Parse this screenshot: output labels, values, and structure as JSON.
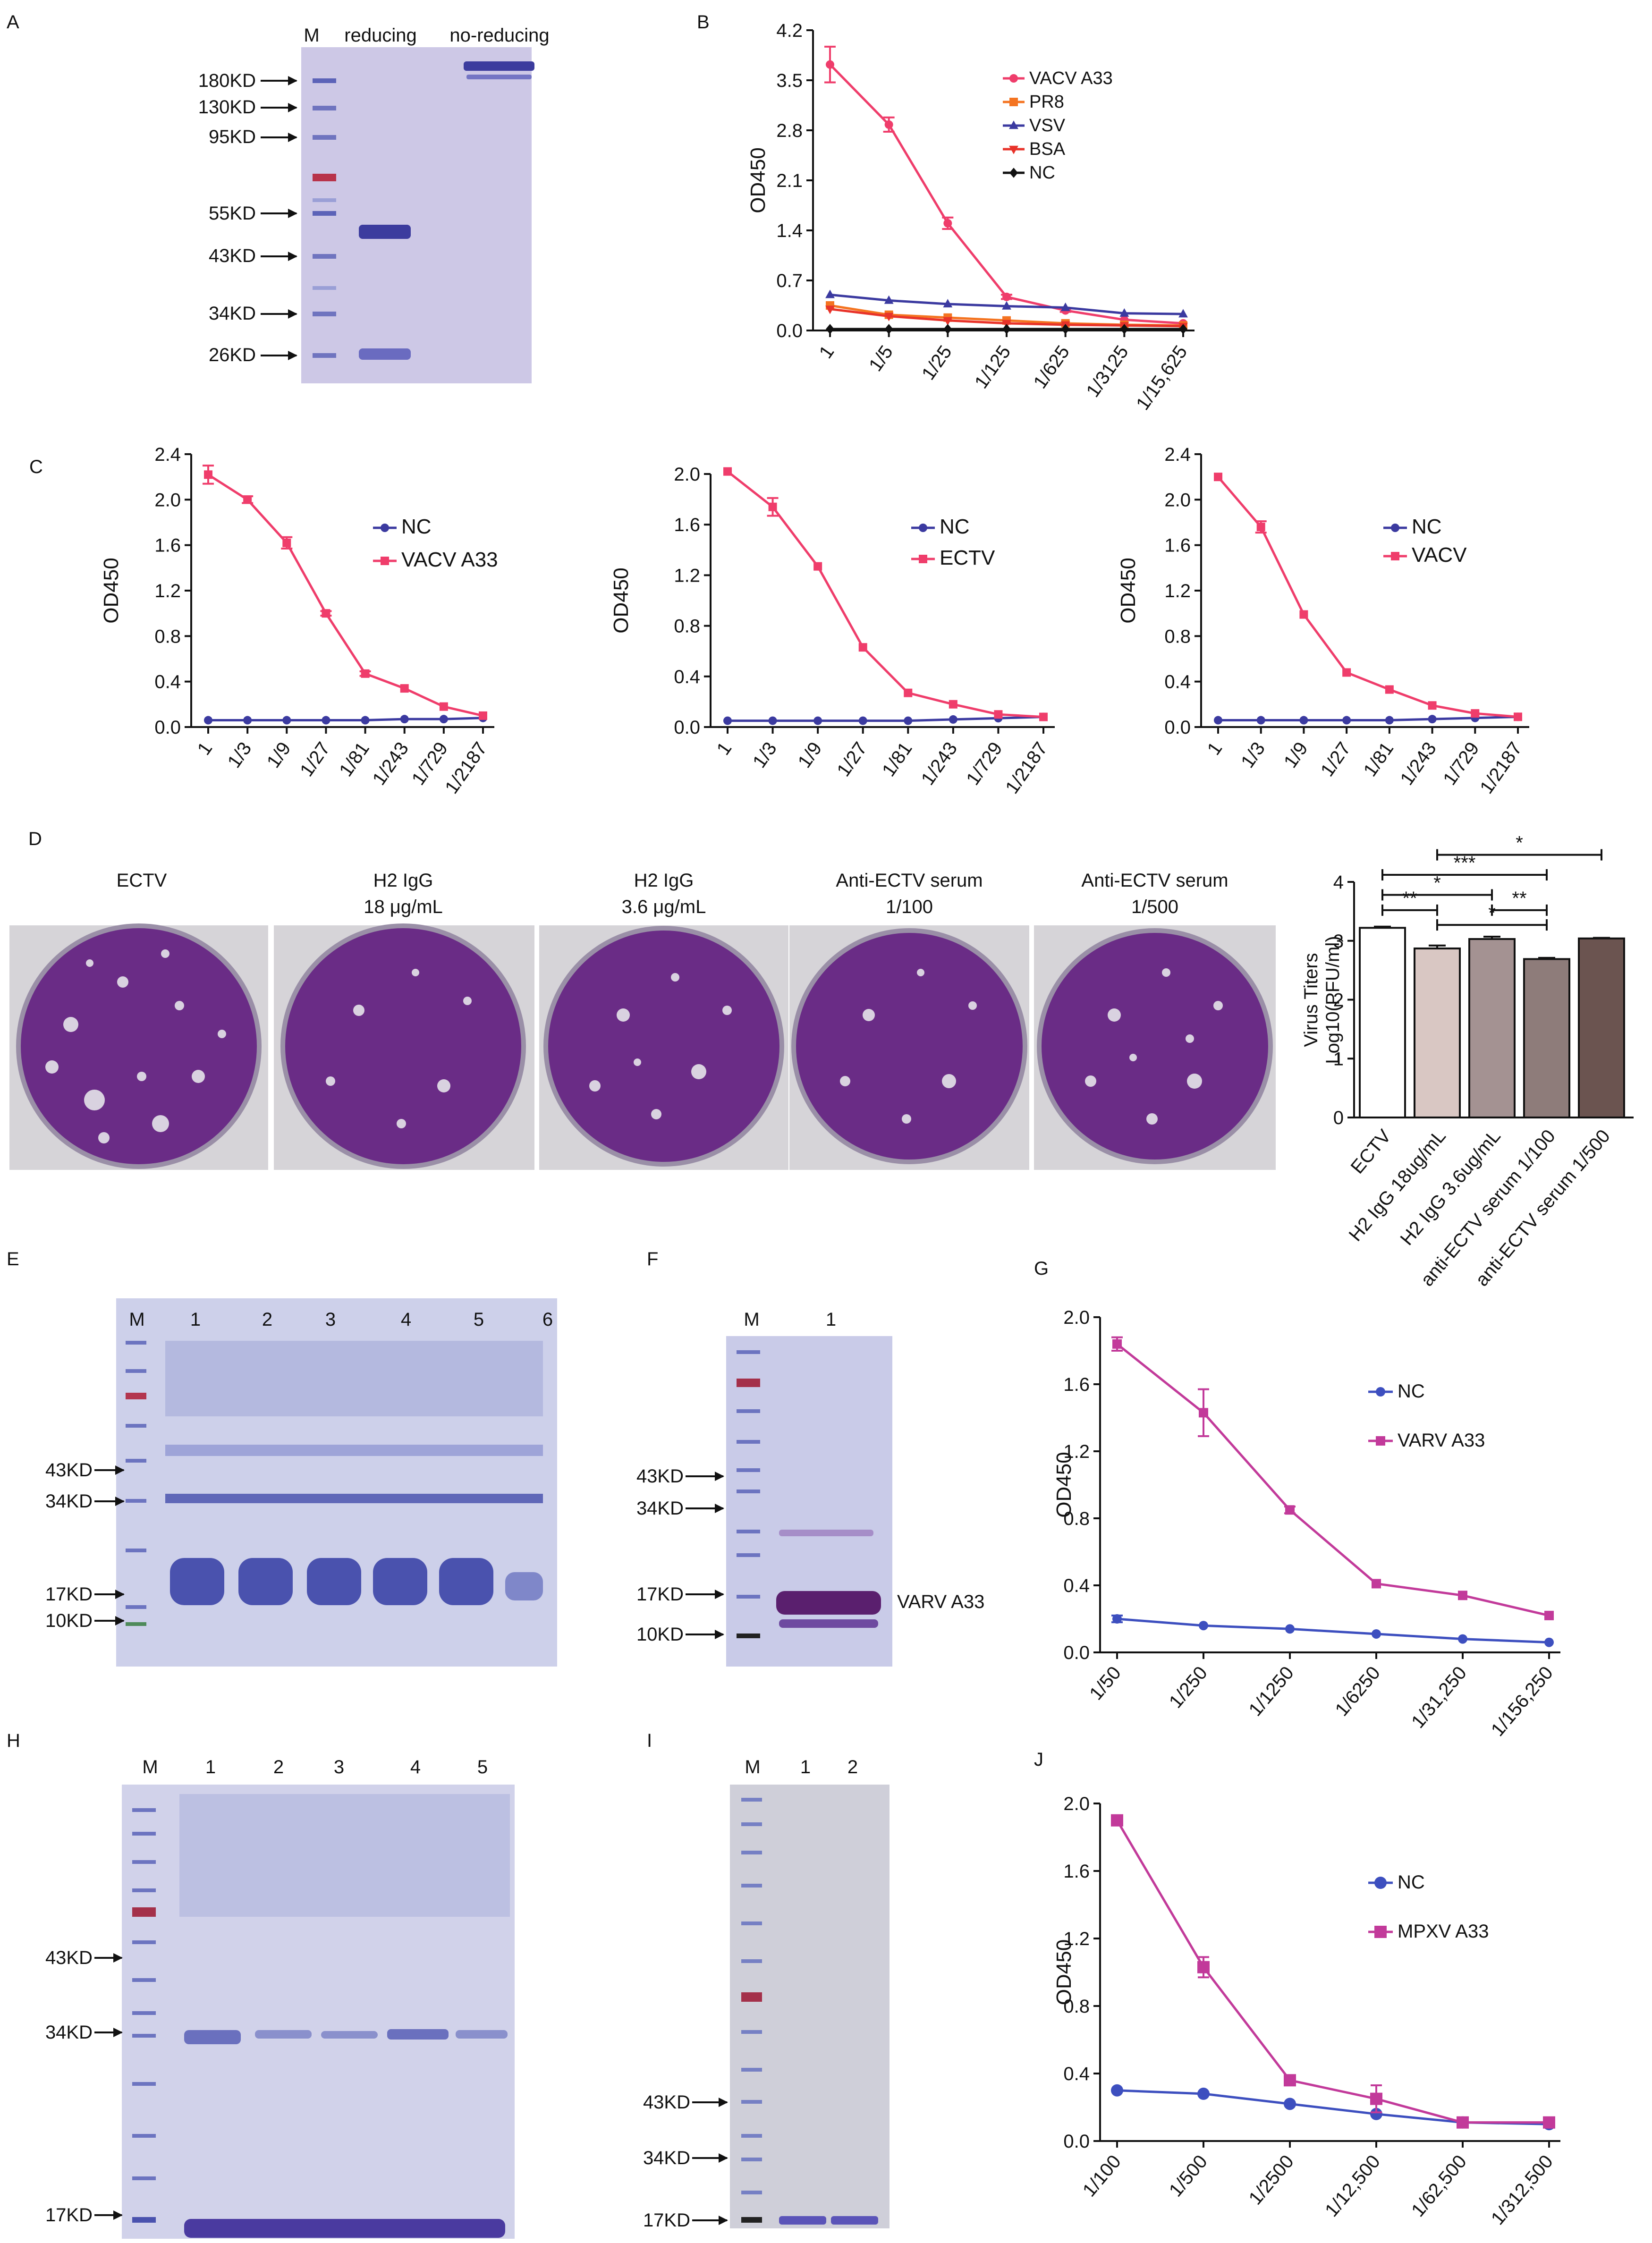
{
  "panels": {
    "A": {
      "letter": "A",
      "lanes": [
        "M",
        "reducing",
        "no-reducing"
      ],
      "markers": [
        "180KD",
        "130KD",
        "95KD",
        "55KD",
        "43KD",
        "34KD",
        "26KD"
      ]
    },
    "D": {
      "letter": "D",
      "plates": [
        {
          "line1": "ECTV",
          "line2": ""
        },
        {
          "line1": "H2 IgG",
          "line2": "18 μg/mL"
        },
        {
          "line1": "H2 IgG",
          "line2": "3.6 μg/mL"
        },
        {
          "line1": "Anti-ECTV serum",
          "line2": "1/100"
        },
        {
          "line1": "Anti-ECTV serum",
          "line2": "1/500"
        }
      ]
    },
    "E": {
      "letter": "E",
      "lanes": [
        "M",
        "1",
        "2",
        "3",
        "4",
        "5",
        "6"
      ],
      "markers": [
        "43KD",
        "34KD",
        "17KD",
        "10KD"
      ]
    },
    "F": {
      "letter": "F",
      "lanes": [
        "M",
        "1"
      ],
      "markers": [
        "43KD",
        "34KD",
        "17KD",
        "10KD"
      ],
      "band_label": "VARV A33"
    },
    "H": {
      "letter": "H",
      "lanes": [
        "M",
        "1",
        "2",
        "3",
        "4",
        "5"
      ],
      "markers": [
        "43KD",
        "34KD",
        "17KD"
      ]
    },
    "I": {
      "letter": "I",
      "lanes": [
        "M",
        "1",
        "2"
      ],
      "markers": [
        "43KD",
        "34KD",
        "17KD"
      ]
    }
  },
  "chart_data": [
    {
      "id": "B",
      "letter": "B",
      "type": "line",
      "ylabel": "OD450",
      "ylim": [
        0,
        4.2
      ],
      "yticks": [
        "0.0",
        "0.7",
        "1.4",
        "2.1",
        "2.8",
        "3.5",
        "4.2"
      ],
      "categories": [
        "1",
        "1/5",
        "1/25",
        "1/125",
        "1/625",
        "1/3125",
        "1/15,625"
      ],
      "series": [
        {
          "name": "VACV A33",
          "color": "#ef3d6b",
          "marker": "circle",
          "values": [
            3.72,
            2.88,
            1.5,
            0.47,
            0.28,
            0.15,
            0.1
          ],
          "err": [
            0.25,
            0.1,
            0.08,
            0.03,
            0.02,
            0.01,
            0.01
          ]
        },
        {
          "name": "PR8",
          "color": "#f47421",
          "marker": "square",
          "values": [
            0.35,
            0.22,
            0.18,
            0.14,
            0.1,
            0.08,
            0.07
          ]
        },
        {
          "name": "VSV",
          "color": "#3b3aa0",
          "marker": "triangle-up",
          "values": [
            0.5,
            0.42,
            0.37,
            0.34,
            0.32,
            0.24,
            0.23
          ]
        },
        {
          "name": "BSA",
          "color": "#e8332a",
          "marker": "triangle-down",
          "values": [
            0.3,
            0.2,
            0.14,
            0.1,
            0.08,
            0.07,
            0.06
          ]
        },
        {
          "name": "NC",
          "color": "#111111",
          "marker": "diamond",
          "values": [
            0.02,
            0.02,
            0.02,
            0.02,
            0.02,
            0.02,
            0.02
          ]
        }
      ]
    },
    {
      "id": "C1",
      "letter": "C",
      "type": "line",
      "ylabel": "OD450",
      "ylim": [
        0,
        2.4
      ],
      "yticks": [
        "0.0",
        "0.4",
        "0.8",
        "1.2",
        "1.6",
        "2.0",
        "2.4"
      ],
      "categories": [
        "1",
        "1/3",
        "1/9",
        "1/27",
        "1/81",
        "1/243",
        "1/729",
        "1/2187"
      ],
      "series": [
        {
          "name": "NC",
          "color": "#3b3aa0",
          "marker": "circle",
          "values": [
            0.06,
            0.06,
            0.06,
            0.06,
            0.06,
            0.07,
            0.07,
            0.08
          ]
        },
        {
          "name": "VACV A33",
          "color": "#ef3d6b",
          "marker": "square",
          "values": [
            2.22,
            2.0,
            1.62,
            1.0,
            0.47,
            0.34,
            0.18,
            0.1
          ],
          "err": [
            0.08,
            0.03,
            0.05,
            0.02,
            0.02,
            0.01,
            0.01,
            0.01
          ]
        }
      ]
    },
    {
      "id": "C2",
      "letter": "",
      "type": "line",
      "ylabel": "OD450",
      "ylim": [
        0,
        2.0
      ],
      "yticks": [
        "0.0",
        "0.4",
        "0.8",
        "1.2",
        "1.6",
        "2.0"
      ],
      "categories": [
        "1",
        "1/3",
        "1/9",
        "1/27",
        "1/81",
        "1/243",
        "1/729",
        "1/2187"
      ],
      "series": [
        {
          "name": "NC",
          "color": "#3b3aa0",
          "marker": "circle",
          "values": [
            0.05,
            0.05,
            0.05,
            0.05,
            0.05,
            0.06,
            0.07,
            0.08
          ]
        },
        {
          "name": "ECTV",
          "color": "#ef3d6b",
          "marker": "square",
          "values": [
            2.02,
            1.74,
            1.27,
            0.63,
            0.27,
            0.18,
            0.1,
            0.08
          ],
          "err": [
            0.01,
            0.07,
            0.01,
            0.01,
            0.01,
            0.01,
            0.01,
            0.01
          ]
        }
      ]
    },
    {
      "id": "C3",
      "letter": "",
      "type": "line",
      "ylabel": "OD450",
      "ylim": [
        0,
        2.4
      ],
      "yticks": [
        "0.0",
        "0.4",
        "0.8",
        "1.2",
        "1.6",
        "2.0",
        "2.4"
      ],
      "categories": [
        "1",
        "1/3",
        "1/9",
        "1/27",
        "1/81",
        "1/243",
        "1/729",
        "1/2187"
      ],
      "series": [
        {
          "name": "NC",
          "color": "#3b3aa0",
          "marker": "circle",
          "values": [
            0.06,
            0.06,
            0.06,
            0.06,
            0.06,
            0.07,
            0.08,
            0.09
          ]
        },
        {
          "name": "VACV",
          "color": "#ef3d6b",
          "marker": "square",
          "values": [
            2.2,
            1.76,
            0.99,
            0.48,
            0.33,
            0.19,
            0.12,
            0.09
          ],
          "err": [
            0.01,
            0.05,
            0.01,
            0.01,
            0.01,
            0.01,
            0.01,
            0.01
          ]
        }
      ]
    },
    {
      "id": "D",
      "letter": "",
      "type": "bar",
      "ylabel": "Virus Titers",
      "ylabel2": "Log10(PFU/ml)",
      "ylim": [
        0,
        4
      ],
      "yticks": [
        "0",
        "1",
        "2",
        "3",
        "4"
      ],
      "categories": [
        "ECTV",
        "H2 IgG 18ug/mL",
        "H2 IgG 3.6ug/mL",
        "anti-ECTV serum 1/100",
        "anti-ECTV serum 1/500"
      ],
      "values": [
        3.22,
        2.87,
        3.03,
        2.69,
        3.04
      ],
      "err": [
        0.02,
        0.05,
        0.04,
        0.02,
        0.01
      ],
      "colors": [
        "#ffffff",
        "#d9c7c3",
        "#a49292",
        "#8e7c7a",
        "#6b5450"
      ],
      "significance": [
        {
          "from": 0,
          "to": 1,
          "label": "**",
          "y": 3.52
        },
        {
          "from": 0,
          "to": 2,
          "label": "*",
          "y": 3.78
        },
        {
          "from": 0,
          "to": 3,
          "label": "***",
          "y": 4.12
        },
        {
          "from": 1,
          "to": 3,
          "label": "*",
          "y": 3.27
        },
        {
          "from": 2,
          "to": 3,
          "label": "**",
          "y": 3.52
        },
        {
          "from": 1,
          "to": 4,
          "label": "*",
          "y": 4.46
        }
      ]
    },
    {
      "id": "G",
      "letter": "G",
      "type": "line",
      "ylabel": "OD450",
      "ylim": [
        0,
        2.0
      ],
      "yticks": [
        "0.0",
        "0.4",
        "0.8",
        "1.2",
        "1.6",
        "2.0"
      ],
      "categories": [
        "1/50",
        "1/250",
        "1/1250",
        "1/6250",
        "1/31,250",
        "1/156,250"
      ],
      "series": [
        {
          "name": "NC",
          "color": "#3d4fbf",
          "marker": "circle",
          "values": [
            0.2,
            0.16,
            0.14,
            0.11,
            0.08,
            0.06
          ],
          "err": [
            0.02,
            0.01,
            0.01,
            0.01,
            0.01,
            0.01
          ]
        },
        {
          "name": "VARV A33",
          "color": "#c23a9a",
          "marker": "square",
          "values": [
            1.84,
            1.43,
            0.85,
            0.41,
            0.34,
            0.22
          ],
          "err": [
            0.04,
            0.14,
            0.02,
            0.01,
            0.01,
            0.01
          ]
        }
      ]
    },
    {
      "id": "J",
      "letter": "J",
      "type": "line",
      "ylabel": "OD450",
      "ylim": [
        0,
        2.0
      ],
      "yticks": [
        "0.0",
        "0.4",
        "0.8",
        "1.2",
        "1.6",
        "2.0"
      ],
      "categories": [
        "1/100",
        "1/500",
        "1/2500",
        "1/12,500",
        "1/62,500",
        "1/312,500"
      ],
      "series": [
        {
          "name": "NC",
          "color": "#3d4fbf",
          "marker": "circle",
          "values": [
            0.3,
            0.28,
            0.22,
            0.16,
            0.11,
            0.1
          ]
        },
        {
          "name": "MPXV A33",
          "color": "#c23a9a",
          "marker": "square",
          "values": [
            1.9,
            1.03,
            0.36,
            0.25,
            0.11,
            0.11
          ],
          "err": [
            0.02,
            0.06,
            0.02,
            0.08,
            0.01,
            0.01
          ]
        }
      ]
    }
  ]
}
